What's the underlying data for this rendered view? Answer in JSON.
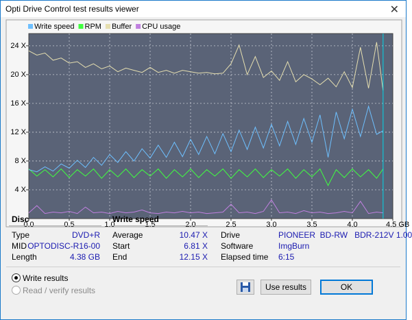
{
  "window": {
    "title": "Opti Drive Control test results viewer"
  },
  "chart_data": {
    "type": "line",
    "x": [
      0.0,
      0.1,
      0.2,
      0.3,
      0.4,
      0.5,
      0.6,
      0.7,
      0.8,
      0.9,
      1.0,
      1.1,
      1.2,
      1.3,
      1.4,
      1.5,
      1.6,
      1.7,
      1.8,
      1.9,
      2.0,
      2.1,
      2.2,
      2.3,
      2.4,
      2.5,
      2.6,
      2.7,
      2.8,
      2.9,
      3.0,
      3.1,
      3.2,
      3.3,
      3.4,
      3.5,
      3.6,
      3.7,
      3.8,
      3.9,
      4.0,
      4.1,
      4.2,
      4.3,
      4.38
    ],
    "series": [
      {
        "name": "Write speed",
        "color": "#6ec0ff",
        "values": [
          6.8,
          6.5,
          7.2,
          6.6,
          7.6,
          7.0,
          8.1,
          7.1,
          8.5,
          7.4,
          8.9,
          7.8,
          9.3,
          8.0,
          9.7,
          8.4,
          10.2,
          8.5,
          10.6,
          8.6,
          11.0,
          8.9,
          11.4,
          9.0,
          11.8,
          9.3,
          12.3,
          9.6,
          12.7,
          9.8,
          13.1,
          10.1,
          13.5,
          10.3,
          13.9,
          10.6,
          14.4,
          8.5,
          14.8,
          11.1,
          15.2,
          11.4,
          15.6,
          11.7,
          12.2
        ]
      },
      {
        "name": "RPM",
        "color": "#40ff40",
        "values": [
          6.9,
          5.9,
          6.8,
          5.8,
          6.9,
          5.7,
          6.8,
          5.9,
          6.9,
          5.6,
          6.8,
          5.8,
          6.9,
          5.7,
          6.8,
          5.9,
          6.9,
          5.6,
          6.8,
          5.8,
          6.9,
          5.7,
          6.8,
          5.9,
          6.9,
          5.6,
          6.8,
          5.8,
          6.9,
          5.7,
          6.8,
          5.9,
          6.9,
          5.6,
          6.8,
          5.8,
          6.9,
          4.6,
          6.8,
          5.7,
          6.9,
          5.8,
          6.8,
          5.6,
          6.9
        ]
      },
      {
        "name": "Buffer",
        "color": "#e6dfb0",
        "values": [
          23.3,
          22.7,
          23.0,
          22.0,
          22.3,
          21.6,
          21.8,
          21.0,
          21.5,
          20.8,
          21.2,
          20.4,
          20.9,
          20.6,
          20.3,
          21.0,
          20.3,
          20.6,
          20.2,
          20.6,
          20.4,
          20.2,
          20.3,
          20.1,
          20.2,
          21.5,
          24.1,
          20.0,
          22.5,
          19.6,
          20.5,
          19.2,
          21.8,
          19.0,
          20.0,
          19.4,
          18.6,
          19.5,
          18.3,
          20.4,
          18.2,
          23.8,
          18.1,
          24.5,
          17.8
        ]
      },
      {
        "name": "CPU usage",
        "color": "#c080e0",
        "values": [
          0.8,
          1.8,
          0.7,
          0.9,
          0.8,
          1.0,
          0.7,
          1.6,
          0.8,
          0.9,
          0.7,
          1.0,
          0.8,
          0.9,
          1.2,
          0.8,
          0.7,
          0.9,
          0.8,
          1.0,
          0.8,
          0.9,
          0.7,
          0.8,
          0.9,
          2.0,
          0.8,
          0.9,
          0.7,
          1.0,
          2.6,
          0.8,
          0.9,
          0.7,
          1.1,
          0.8,
          0.9,
          0.7,
          0.8,
          1.0,
          0.8,
          2.4,
          0.7,
          0.9,
          0.8
        ]
      }
    ],
    "xlim": [
      0,
      4.5
    ],
    "xticks": [
      {
        "value": 0,
        "label": "0.0"
      },
      0.5,
      {
        "value": 1,
        "label": "1.0"
      },
      1.5,
      {
        "value": 2,
        "label": "2.0"
      },
      2.5,
      {
        "value": 3,
        "label": "3.0"
      },
      3.5,
      {
        "value": 4,
        "label": "4.0"
      },
      {
        "value": 4.5,
        "label": "4.5 GB"
      }
    ],
    "ylim": [
      0,
      25.7
    ],
    "yticks": [
      {
        "value": 4,
        "label": "4 X"
      },
      {
        "value": 8,
        "label": "8 X"
      },
      {
        "value": 12,
        "label": "12 X"
      },
      {
        "value": 16,
        "label": "16 X"
      },
      {
        "value": 20,
        "label": "20 X"
      },
      {
        "value": 24,
        "label": "24 X"
      }
    ],
    "grid": true
  },
  "disc": {
    "heading": "Disc",
    "rows": [
      [
        "Type",
        "DVD+R"
      ],
      [
        "MID",
        "OPTODISC-R16-00"
      ],
      [
        "Length",
        "4.38 GB"
      ]
    ]
  },
  "write_speed": {
    "heading": "Write speed",
    "rows": [
      [
        "Average",
        "10.47 X"
      ],
      [
        "Start",
        "6.81 X"
      ],
      [
        "End",
        "12.15 X"
      ]
    ]
  },
  "drive": {
    "rows": [
      [
        "Drive",
        "PIONEER  BD-RW   BDR-212V 1.00"
      ],
      [
        "Software",
        "ImgBurn"
      ],
      [
        "Elapsed time",
        "6:15"
      ]
    ]
  },
  "options": [
    "Write results",
    "Read / verify results"
  ],
  "buttons": [
    "Use results",
    "OK"
  ]
}
